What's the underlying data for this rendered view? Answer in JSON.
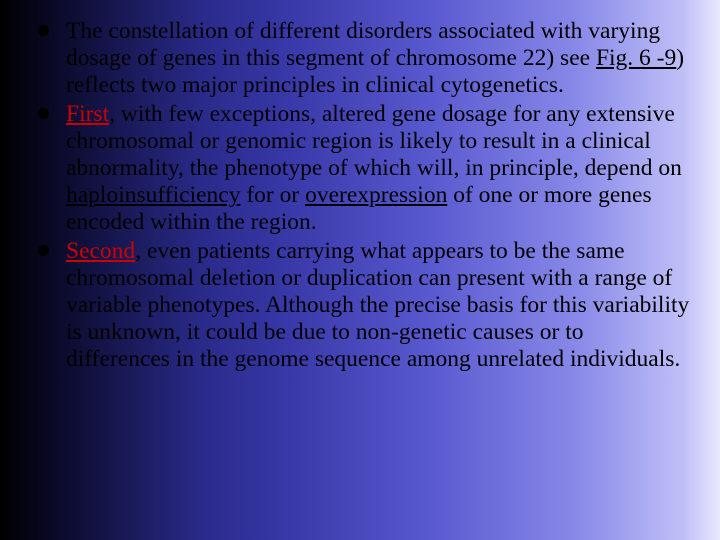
{
  "slide": {
    "background_gradient_colors": [
      "#000000",
      "#0a0a2a",
      "#1a1a5a",
      "#2a2a8a",
      "#3838a8",
      "#5a5ad0",
      "#8888e8",
      "#c0c0f8",
      "#e8e8ff"
    ],
    "text_color": "#000000",
    "accent_color": "#cc0000",
    "font_family": "Times New Roman",
    "font_size_pt": 18,
    "bullets": [
      {
        "prefix": "The constellation of different disorders associated with varying dosage of genes in this segment of chromosome 22) see ",
        "link": "Fig. 6 -9",
        "after_link": ") reflects two major principles in clinical cytogenetics."
      },
      {
        "lead": "First",
        "rest1": ", with few exceptions, altered gene dosage for any extensive chromosomal or genomic region is likely to result in a clinical abnormality, the phenotype of which will, in principle, depend on ",
        "u1": "haploinsufficiency",
        "rest2": " for or ",
        "u2": "overexpression",
        "rest3": " of one or more genes encoded within the region."
      },
      {
        "lead": "Second",
        "rest": ", even patients carrying what appears to be the same chromosomal deletion or duplication can present with a range of variable phenotypes. Although the precise basis for this variability is unknown, it could be due to non-genetic causes or to differences in the genome sequence among unrelated individuals."
      }
    ]
  }
}
